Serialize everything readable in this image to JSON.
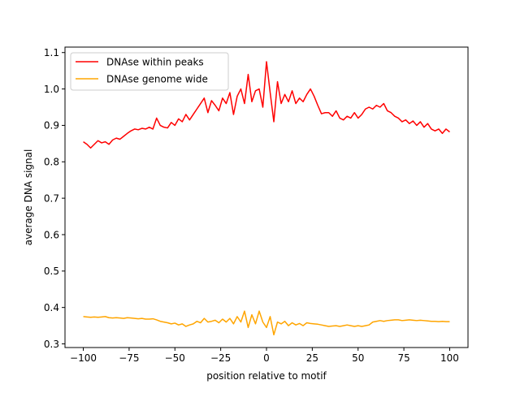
{
  "chart_data": {
    "type": "line",
    "title": "",
    "xlabel": "position relative to motif",
    "ylabel": "average DNA signal",
    "xlim": [
      -110,
      110
    ],
    "ylim": [
      0.29,
      1.115
    ],
    "xticks": [
      -100,
      -75,
      -50,
      -25,
      0,
      25,
      50,
      75,
      100
    ],
    "yticks": [
      0.3,
      0.4,
      0.5,
      0.6,
      0.7,
      0.8,
      0.9,
      1.0,
      1.1
    ],
    "legend_position": "top-left",
    "grid": false,
    "series": [
      {
        "name": "DNAse within peaks",
        "color": "#ff0000",
        "x": [
          -100,
          -98,
          -96,
          -94,
          -92,
          -90,
          -88,
          -86,
          -84,
          -82,
          -80,
          -78,
          -76,
          -74,
          -72,
          -70,
          -68,
          -66,
          -64,
          -62,
          -60,
          -58,
          -56,
          -54,
          -52,
          -50,
          -48,
          -46,
          -44,
          -42,
          -40,
          -38,
          -36,
          -34,
          -32,
          -30,
          -28,
          -26,
          -24,
          -22,
          -20,
          -18,
          -16,
          -14,
          -12,
          -10,
          -8,
          -6,
          -4,
          -2,
          0,
          2,
          4,
          6,
          8,
          10,
          12,
          14,
          16,
          18,
          20,
          22,
          24,
          26,
          28,
          30,
          32,
          34,
          36,
          38,
          40,
          42,
          44,
          46,
          48,
          50,
          52,
          54,
          56,
          58,
          60,
          62,
          64,
          66,
          68,
          70,
          72,
          74,
          76,
          78,
          80,
          82,
          84,
          86,
          88,
          90,
          92,
          94,
          96,
          98,
          100
        ],
        "y": [
          0.855,
          0.848,
          0.838,
          0.848,
          0.858,
          0.852,
          0.855,
          0.848,
          0.86,
          0.865,
          0.862,
          0.87,
          0.878,
          0.885,
          0.89,
          0.888,
          0.892,
          0.89,
          0.895,
          0.89,
          0.92,
          0.9,
          0.895,
          0.893,
          0.908,
          0.9,
          0.918,
          0.91,
          0.93,
          0.915,
          0.93,
          0.945,
          0.96,
          0.975,
          0.935,
          0.968,
          0.955,
          0.94,
          0.975,
          0.96,
          0.99,
          0.93,
          0.98,
          1.0,
          0.96,
          1.04,
          0.965,
          0.995,
          1.0,
          0.95,
          1.075,
          0.99,
          0.91,
          1.02,
          0.96,
          0.985,
          0.965,
          0.995,
          0.96,
          0.975,
          0.965,
          0.985,
          1.0,
          0.98,
          0.955,
          0.932,
          0.935,
          0.935,
          0.925,
          0.94,
          0.92,
          0.915,
          0.925,
          0.92,
          0.935,
          0.92,
          0.93,
          0.945,
          0.95,
          0.945,
          0.955,
          0.95,
          0.96,
          0.94,
          0.935,
          0.925,
          0.92,
          0.91,
          0.915,
          0.905,
          0.912,
          0.9,
          0.91,
          0.895,
          0.905,
          0.89,
          0.885,
          0.89,
          0.878,
          0.89,
          0.882
        ]
      },
      {
        "name": "DNAse genome wide",
        "color": "#ffa500",
        "x": [
          -100,
          -98,
          -96,
          -94,
          -92,
          -90,
          -88,
          -86,
          -84,
          -82,
          -80,
          -78,
          -76,
          -74,
          -72,
          -70,
          -68,
          -66,
          -64,
          -62,
          -60,
          -58,
          -56,
          -54,
          -52,
          -50,
          -48,
          -46,
          -44,
          -42,
          -40,
          -38,
          -36,
          -34,
          -32,
          -30,
          -28,
          -26,
          -24,
          -22,
          -20,
          -18,
          -16,
          -14,
          -12,
          -10,
          -8,
          -6,
          -4,
          -2,
          0,
          2,
          4,
          6,
          8,
          10,
          12,
          14,
          16,
          18,
          20,
          22,
          24,
          26,
          28,
          30,
          32,
          34,
          36,
          38,
          40,
          42,
          44,
          46,
          48,
          50,
          52,
          54,
          56,
          58,
          60,
          62,
          64,
          66,
          68,
          70,
          72,
          74,
          76,
          78,
          80,
          82,
          84,
          86,
          88,
          90,
          92,
          94,
          96,
          98,
          100
        ],
        "y": [
          0.375,
          0.374,
          0.373,
          0.374,
          0.373,
          0.374,
          0.375,
          0.372,
          0.371,
          0.372,
          0.371,
          0.37,
          0.372,
          0.371,
          0.37,
          0.369,
          0.37,
          0.368,
          0.368,
          0.369,
          0.366,
          0.362,
          0.36,
          0.358,
          0.355,
          0.357,
          0.352,
          0.355,
          0.348,
          0.352,
          0.355,
          0.362,
          0.358,
          0.37,
          0.36,
          0.362,
          0.365,
          0.358,
          0.368,
          0.36,
          0.37,
          0.355,
          0.375,
          0.36,
          0.39,
          0.345,
          0.38,
          0.355,
          0.39,
          0.36,
          0.345,
          0.375,
          0.325,
          0.36,
          0.355,
          0.362,
          0.35,
          0.358,
          0.352,
          0.356,
          0.35,
          0.358,
          0.356,
          0.355,
          0.354,
          0.352,
          0.35,
          0.348,
          0.349,
          0.35,
          0.348,
          0.35,
          0.352,
          0.35,
          0.348,
          0.35,
          0.348,
          0.35,
          0.352,
          0.36,
          0.362,
          0.364,
          0.362,
          0.364,
          0.365,
          0.366,
          0.366,
          0.364,
          0.365,
          0.366,
          0.365,
          0.364,
          0.365,
          0.364,
          0.363,
          0.362,
          0.362,
          0.361,
          0.362,
          0.361,
          0.361
        ]
      }
    ]
  }
}
